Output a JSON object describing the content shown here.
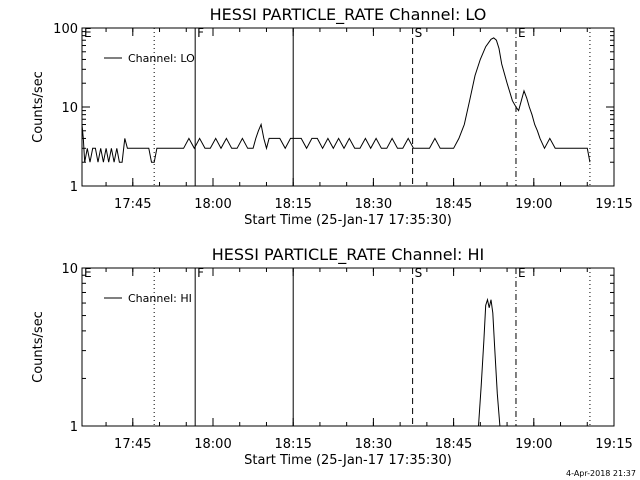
{
  "chart_data": [
    {
      "type": "line",
      "title": "HESSI PARTICLE_RATE Channel: LO",
      "xlabel": "Start Time (25-Jan-17 17:35:30)",
      "ylabel": "Counts/sec",
      "yscale": "log",
      "ylim": [
        1,
        100
      ],
      "xlim": [
        "17:35:30",
        "19:15:00"
      ],
      "x_ticks": [
        "17:45",
        "18:00",
        "18:15",
        "18:30",
        "18:45",
        "19:00",
        "19:15"
      ],
      "y_ticks": [
        "1",
        "10",
        "100"
      ],
      "legend": {
        "position": "top-left",
        "entries": [
          "Channel: LO"
        ]
      },
      "markers": [
        {
          "label": "E",
          "time": "17:35:30",
          "style": "none"
        },
        {
          "label": "",
          "time": "17:49:00",
          "style": "dotted"
        },
        {
          "label": "F",
          "time": "17:56:40",
          "style": "solid"
        },
        {
          "label": "",
          "time": "18:15:00",
          "style": "solid"
        },
        {
          "label": "S",
          "time": "18:37:20",
          "style": "dashed"
        },
        {
          "label": "E",
          "time": "18:56:40",
          "style": "dashdot"
        },
        {
          "label": "",
          "time": "19:10:30",
          "style": "dotted"
        }
      ],
      "series": [
        {
          "name": "Channel: LO",
          "x": [
            "17:35:30",
            "17:35:45",
            "17:36:00",
            "17:36:30",
            "17:37:00",
            "17:37:30",
            "17:38:00",
            "17:38:30",
            "17:39:00",
            "17:39:30",
            "17:40:00",
            "17:40:30",
            "17:41:00",
            "17:41:30",
            "17:42:00",
            "17:42:30",
            "17:43:00",
            "17:43:30",
            "17:44:00",
            "17:44:30",
            "17:45:00",
            "17:45:30",
            "17:46:00",
            "17:46:30",
            "17:47:00",
            "17:47:30",
            "17:48:00",
            "17:48:30",
            "17:49:00",
            "17:49:30",
            "17:50:30",
            "17:51:30",
            "17:52:30",
            "17:53:30",
            "17:54:30",
            "17:55:30",
            "17:56:30",
            "17:57:30",
            "17:58:30",
            "17:59:30",
            "18:00:30",
            "18:01:30",
            "18:02:30",
            "18:03:30",
            "18:04:30",
            "18:05:30",
            "18:06:30",
            "18:07:30",
            "18:08:00",
            "18:08:30",
            "18:09:00",
            "18:09:30",
            "18:10:00",
            "18:10:30",
            "18:11:30",
            "18:12:30",
            "18:13:30",
            "18:14:30",
            "18:15:30",
            "18:16:30",
            "18:17:30",
            "18:18:30",
            "18:19:30",
            "18:20:30",
            "18:21:30",
            "18:22:30",
            "18:23:30",
            "18:24:30",
            "18:25:30",
            "18:26:30",
            "18:27:30",
            "18:28:30",
            "18:29:30",
            "18:30:30",
            "18:31:30",
            "18:32:30",
            "18:33:30",
            "18:34:30",
            "18:35:30",
            "18:36:30",
            "18:37:30",
            "18:38:30",
            "18:39:30",
            "18:40:30",
            "18:41:30",
            "18:42:30",
            "18:43:30",
            "18:44:30",
            "18:45:00",
            "18:46:00",
            "18:47:00",
            "18:48:00",
            "18:49:00",
            "18:50:00",
            "18:51:00",
            "18:52:00",
            "18:52:30",
            "18:53:00",
            "18:53:30",
            "18:54:00",
            "18:55:00",
            "18:56:00",
            "18:56:40",
            "18:57:10",
            "18:57:40",
            "18:58:10",
            "18:58:40",
            "18:59:10",
            "18:59:40",
            "19:00:10",
            "19:00:40",
            "19:01:10",
            "19:02:00",
            "19:03:00",
            "19:04:00",
            "19:05:00",
            "19:06:00",
            "19:07:00",
            "19:08:00",
            "19:09:00",
            "19:10:00",
            "19:10:30"
          ],
          "y": [
            6,
            4,
            2,
            3,
            2,
            3,
            3,
            2,
            3,
            2,
            3,
            2,
            3,
            2,
            3,
            2,
            2,
            4,
            3,
            3,
            3,
            3,
            3,
            3,
            3,
            3,
            3,
            2,
            2,
            3,
            3,
            3,
            3,
            3,
            3,
            4,
            3,
            4,
            3,
            3,
            4,
            3,
            4,
            3,
            3,
            4,
            3,
            3,
            4,
            5,
            6,
            4,
            3,
            4,
            4,
            4,
            3,
            4,
            4,
            4,
            3,
            4,
            4,
            3,
            4,
            3,
            4,
            3,
            4,
            3,
            3,
            4,
            3,
            4,
            3,
            3,
            4,
            3,
            3,
            4,
            3,
            3,
            3,
            3,
            4,
            3,
            3,
            3,
            3,
            4,
            6,
            12,
            25,
            40,
            58,
            72,
            75,
            70,
            55,
            35,
            20,
            12,
            10,
            9,
            12,
            16,
            13,
            10,
            8,
            6,
            5,
            4,
            3,
            4,
            3,
            3,
            3,
            3,
            3,
            3,
            3,
            2
          ],
          "color": "#000000"
        }
      ]
    },
    {
      "type": "line",
      "title": "HESSI PARTICLE_RATE Channel: HI",
      "xlabel": "Start Time (25-Jan-17 17:35:30)",
      "ylabel": "Counts/sec",
      "yscale": "log",
      "ylim": [
        1,
        10
      ],
      "xlim": [
        "17:35:30",
        "19:15:00"
      ],
      "x_ticks": [
        "17:45",
        "18:00",
        "18:15",
        "18:30",
        "18:45",
        "19:00",
        "19:15"
      ],
      "y_ticks": [
        "1",
        "10"
      ],
      "legend": {
        "position": "top-left",
        "entries": [
          "Channel: HI"
        ]
      },
      "markers": [
        {
          "label": "E",
          "time": "17:35:30",
          "style": "none"
        },
        {
          "label": "",
          "time": "17:49:00",
          "style": "dotted"
        },
        {
          "label": "F",
          "time": "17:56:40",
          "style": "solid"
        },
        {
          "label": "",
          "time": "18:15:00",
          "style": "solid"
        },
        {
          "label": "S",
          "time": "18:37:20",
          "style": "dashed"
        },
        {
          "label": "E",
          "time": "18:56:40",
          "style": "dashdot"
        },
        {
          "label": "",
          "time": "19:10:30",
          "style": "dotted"
        }
      ],
      "series": [
        {
          "name": "Channel: HI",
          "x": [
            "18:49:40",
            "18:50:10",
            "18:50:40",
            "18:51:00",
            "18:51:20",
            "18:51:40",
            "18:52:00",
            "18:52:20",
            "18:52:40",
            "18:53:10",
            "18:53:40"
          ],
          "y": [
            1,
            1.8,
            3.5,
            5.8,
            6.3,
            5.6,
            6.3,
            5.2,
            3.2,
            1.6,
            1
          ],
          "color": "#000000"
        }
      ]
    }
  ],
  "footer": {
    "stamp": "4-Apr-2018 21:37"
  }
}
